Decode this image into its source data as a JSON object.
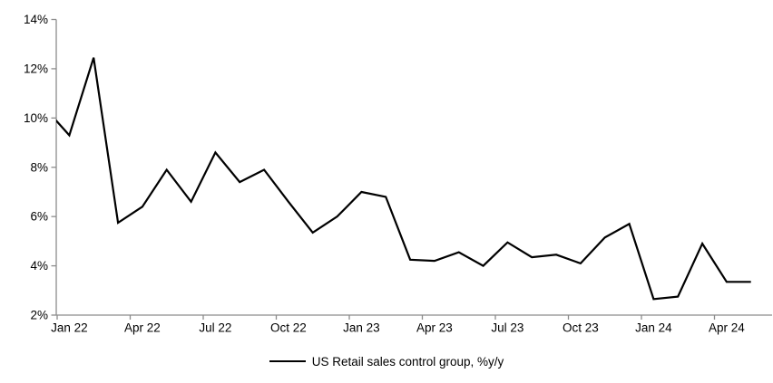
{
  "chart_data": {
    "type": "line",
    "title": "",
    "x": [
      "Dec 21",
      "Jan 22",
      "Feb 22",
      "Mar 22",
      "Apr 22",
      "May 22",
      "Jun 22",
      "Jul 22",
      "Aug 22",
      "Sep 22",
      "Oct 22",
      "Nov 22",
      "Dec 22",
      "Jan 23",
      "Feb 23",
      "Mar 23",
      "Apr 23",
      "May 23",
      "Jun 23",
      "Jul 23",
      "Aug 23",
      "Sep 23",
      "Oct 23",
      "Nov 23",
      "Dec 23",
      "Jan 24",
      "Feb 24",
      "Mar 24",
      "Apr 24",
      "May 24"
    ],
    "series": [
      {
        "name": "US Retail sales control group, %y/y",
        "color": "#000000",
        "values": [
          10.4,
          9.3,
          12.45,
          5.75,
          6.4,
          7.9,
          6.6,
          8.6,
          7.4,
          7.9,
          6.6,
          5.35,
          6.0,
          7.0,
          6.8,
          4.25,
          4.2,
          4.55,
          4.0,
          4.95,
          4.35,
          4.45,
          4.1,
          5.15,
          5.7,
          2.65,
          2.75,
          4.9,
          3.35,
          3.35
        ]
      }
    ],
    "y_axis": {
      "min": 2,
      "max": 14,
      "step": 2,
      "tick_labels": [
        "2%",
        "4%",
        "6%",
        "8%",
        "10%",
        "12%",
        "14%"
      ]
    },
    "x_axis": {
      "tick_labels": [
        "Jan 22",
        "Apr 22",
        "Jul 22",
        "Oct 22",
        "Jan 23",
        "Apr 23",
        "Jul 23",
        "Oct 23",
        "Jan 24",
        "Apr 24"
      ],
      "label_interval_months": 3
    },
    "legend": {
      "position": "bottom",
      "label": "US Retail sales control group, %y/y"
    },
    "colors": {
      "axis": "#8C8C8C",
      "text": "#000000",
      "background": "#FFFFFF"
    },
    "grid": "off",
    "first_point_clipped_at_left_axis": true
  }
}
